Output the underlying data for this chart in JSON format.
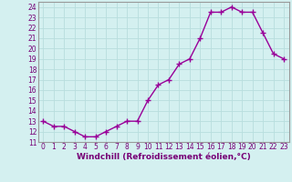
{
  "x": [
    0,
    1,
    2,
    3,
    4,
    5,
    6,
    7,
    8,
    9,
    10,
    11,
    12,
    13,
    14,
    15,
    16,
    17,
    18,
    19,
    20,
    21,
    22,
    23
  ],
  "y": [
    13.0,
    12.5,
    12.5,
    12.0,
    11.5,
    11.5,
    12.0,
    12.5,
    13.0,
    13.0,
    15.0,
    16.5,
    17.0,
    18.5,
    19.0,
    21.0,
    23.5,
    23.5,
    24.0,
    23.5,
    23.5,
    21.5,
    19.5,
    19.0
  ],
  "line_color": "#990099",
  "marker": "+",
  "markersize": 4,
  "linewidth": 1.0,
  "xlabel": "Windchill (Refroidissement éolien,°C)",
  "xlabel_fontsize": 6.5,
  "bg_color": "#d4f0f0",
  "grid_color": "#b8dede",
  "ylim": [
    11,
    24.5
  ],
  "xlim": [
    -0.5,
    23.5
  ],
  "yticks": [
    11,
    12,
    13,
    14,
    15,
    16,
    17,
    18,
    19,
    20,
    21,
    22,
    23,
    24
  ],
  "xticks": [
    0,
    1,
    2,
    3,
    4,
    5,
    6,
    7,
    8,
    9,
    10,
    11,
    12,
    13,
    14,
    15,
    16,
    17,
    18,
    19,
    20,
    21,
    22,
    23
  ],
  "tick_fontsize": 5.5,
  "text_color": "#770077",
  "spine_color": "#999999"
}
